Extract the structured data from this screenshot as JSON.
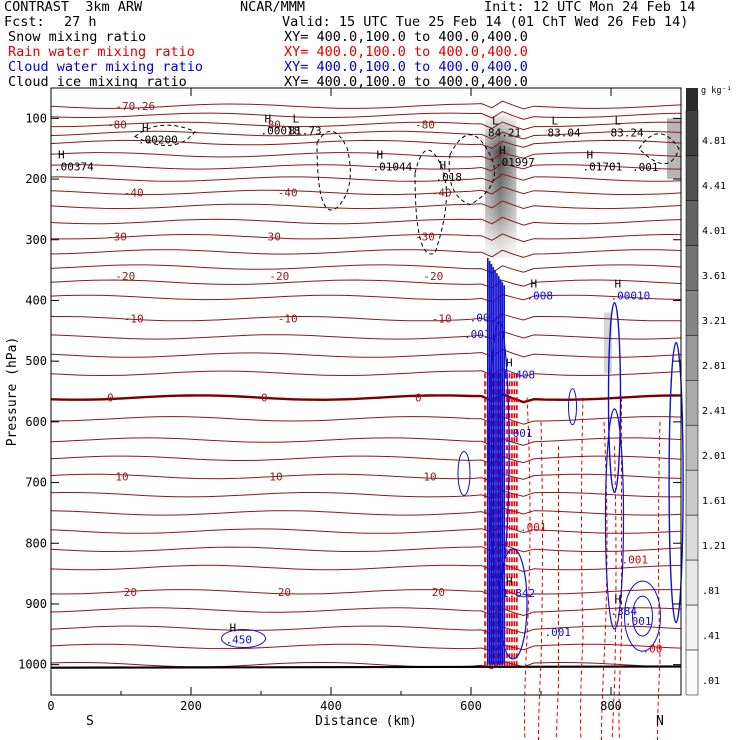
{
  "header": {
    "model": "CONTRAST  3km ARW",
    "center": "NCAR/MMM",
    "init": "Init: 12 UTC Mon 24 Feb 14",
    "fcst_label": "Fcst:",
    "fcst_value": "27 h",
    "valid": "Valid: 15 UTC Tue 25 Feb 14 (01 ChT Wed 26 Feb 14)",
    "fields": [
      {
        "name": "Snow mixing ratio",
        "xy": "XY= 400.0,100.0 to 400.0,400.0",
        "color": "#000000"
      },
      {
        "name": "Rain water mixing ratio",
        "xy": "XY= 400.0,100.0 to 400.0,400.0",
        "color": "#e00000"
      },
      {
        "name": "Cloud water mixing ratio",
        "xy": "XY= 400.0,100.0 to 400.0,400.0",
        "color": "#0000cc"
      },
      {
        "name": "Cloud ice mixing ratio",
        "xy": "XY= 400.0,100.0 to 400.0,400.0",
        "color": "#000000"
      }
    ]
  },
  "chart_data": {
    "type": "heatmap",
    "title": "",
    "xlabel": "Distance (km)",
    "ylabel": "Pressure (hPa)",
    "xlim": [
      0,
      900
    ],
    "ylim": [
      1050,
      50
    ],
    "x_ticks": [
      0,
      200,
      400,
      600,
      800
    ],
    "y_ticks": [
      100,
      200,
      300,
      400,
      500,
      600,
      700,
      800,
      900,
      1000
    ],
    "x_end_labels": {
      "left": "S",
      "right": "N"
    },
    "colorbar": {
      "units": "g kg⁻¹",
      "labels": [
        "4.81",
        "4.41",
        "4.01",
        "3.61",
        "3.21",
        "2.81",
        "2.41",
        "2.01",
        "1.61",
        "1.21",
        ".81",
        ".41",
        ".01"
      ],
      "colors": [
        "#3f3f3f",
        "#505050",
        "#626262",
        "#747474",
        "#868686",
        "#989898",
        "#aaaaaa",
        "#bcbcbc",
        "#cccccc",
        "#dbdbdb",
        "#e8e8e8",
        "#f2f2f2",
        "#fafafa"
      ]
    },
    "temperature_isotherms": [
      {
        "label": "-80",
        "p": 110
      },
      {
        "label": "-70.26",
        "p": 80
      },
      {
        "label": "-40",
        "p": 222
      },
      {
        "label": "-30",
        "p": 295
      },
      {
        "label": "-20",
        "p": 360
      },
      {
        "label": "-10",
        "p": 430
      },
      {
        "label": "0",
        "p": 560
      },
      {
        "label": "10",
        "p": 690
      },
      {
        "label": "20",
        "p": 880
      }
    ],
    "extrema_labels": [
      {
        "type": "H",
        "value": ".00200",
        "x": 130,
        "p": 133
      },
      {
        "type": "H",
        "value": ".00018",
        "x": 305,
        "p": 118
      },
      {
        "type": "L",
        "value": "81.73",
        "x": 345,
        "p": 118
      },
      {
        "type": "H",
        "value": ".00374",
        "x": 10,
        "p": 178
      },
      {
        "type": "H",
        "value": ".01044",
        "x": 465,
        "p": 178
      },
      {
        "type": "H",
        "value": ".018",
        "x": 555,
        "p": 195
      },
      {
        "type": "L",
        "value": "84.21",
        "x": 630,
        "p": 122
      },
      {
        "type": "H",
        "value": ".01997",
        "x": 640,
        "p": 170
      },
      {
        "type": "L",
        "value": "83.04",
        "x": 715,
        "p": 122
      },
      {
        "type": "L",
        "value": "83.24",
        "x": 805,
        "p": 122
      },
      {
        "type": "H",
        "value": ".01701",
        "x": 765,
        "p": 178
      },
      {
        "type": "H",
        "value": ".00010",
        "x": 805,
        "p": 390
      },
      {
        "type": "H",
        "value": ".008",
        "x": 685,
        "p": 390
      },
      {
        "type": "H",
        "value": "1.408",
        "x": 650,
        "p": 520
      },
      {
        "type": "H",
        "value": "1.842",
        "x": 650,
        "p": 880
      },
      {
        "type": "H",
        "value": ".384",
        "x": 805,
        "p": 910
      },
      {
        "type": "H",
        "value": ".450",
        "x": 255,
        "p": 957
      }
    ],
    "cloud_water_labels": [
      ".001",
      ".001",
      ".001",
      ".001",
      ".001"
    ],
    "snow_labels": [
      ".001"
    ],
    "rain_labels": [
      ".001",
      ".001",
      ".00"
    ]
  }
}
